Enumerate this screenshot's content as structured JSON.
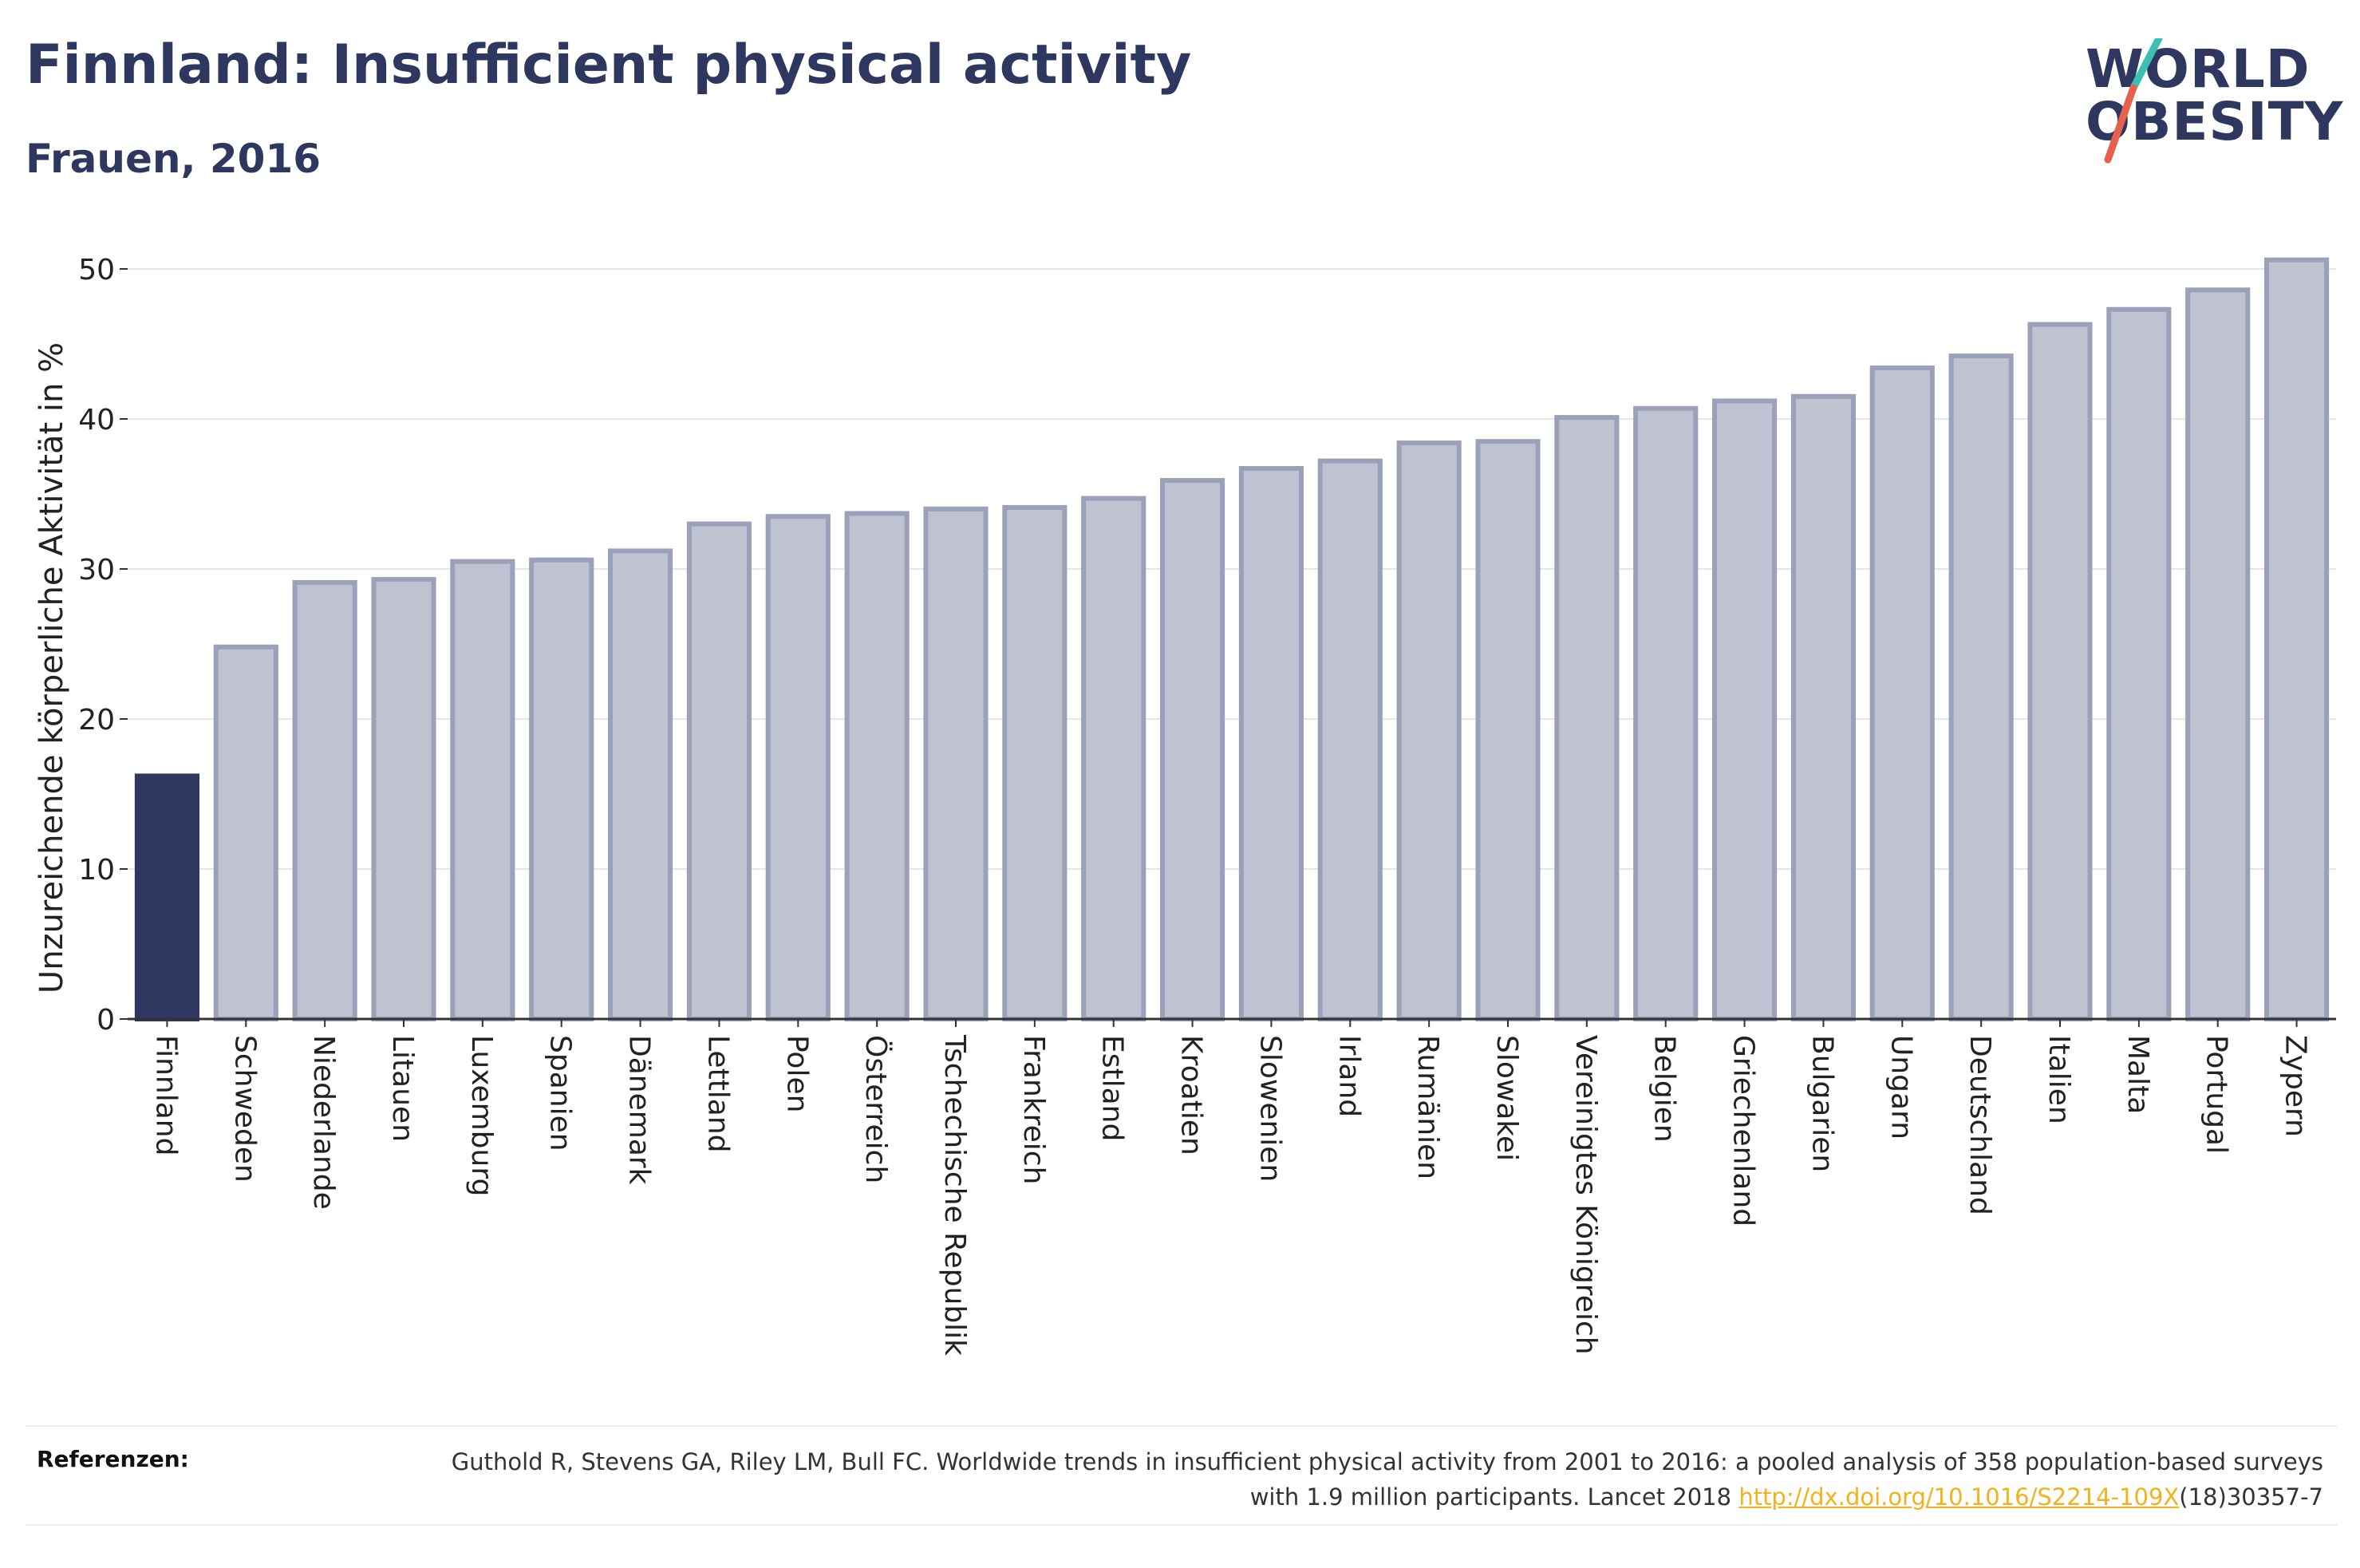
{
  "header": {
    "title": "Finnland: Insufficient physical activity",
    "subtitle": "Frauen, 2016"
  },
  "logo": {
    "line1": "WORLD",
    "line2": "OBESITY",
    "colors": {
      "text": "#2d3760",
      "slash_top": "#3cbfb4",
      "slash_bottom": "#e8604c"
    }
  },
  "chart_data": {
    "type": "bar",
    "title": "",
    "xlabel": "",
    "ylabel": "Unzureichende körperliche Aktivität in %",
    "ylim": [
      0,
      50
    ],
    "yticks": [
      0,
      10,
      20,
      30,
      40,
      50
    ],
    "grid": true,
    "highlight_category": "Finnland",
    "colors": {
      "highlight": "#2d3760",
      "bar_fill": "#bfc3d1",
      "bar_stroke": "#9aa1b8"
    },
    "categories": [
      "Finnland",
      "Schweden",
      "Niederlande",
      "Litauen",
      "Luxemburg",
      "Spanien",
      "Dänemark",
      "Lettland",
      "Polen",
      "Österreich",
      "Tschechische Republik",
      "Frankreich",
      "Estland",
      "Kroatien",
      "Slowenien",
      "Irland",
      "Rumänien",
      "Slowakei",
      "Vereinigtes Königreich",
      "Belgien",
      "Griechenland",
      "Bulgarien",
      "Ungarn",
      "Deutschland",
      "Italien",
      "Malta",
      "Portugal",
      "Zypern"
    ],
    "values": [
      16.2,
      24.8,
      29.1,
      29.3,
      30.5,
      30.6,
      31.2,
      33.0,
      33.5,
      33.7,
      34.0,
      34.1,
      34.7,
      35.9,
      36.7,
      37.2,
      38.4,
      38.5,
      40.1,
      40.7,
      41.2,
      41.5,
      43.4,
      44.2,
      46.3,
      47.3,
      48.6,
      50.6
    ]
  },
  "references": {
    "label": "Referenzen:",
    "text_before": "Guthold R, Stevens GA, Riley LM, Bull FC. Worldwide trends in insufficient physical activity from 2001 to 2016: a pooled analysis of 358 population-based surveys with 1.9 million participants. Lancet 2018 ",
    "link": "http://dx.doi.org/10.1016/S2214-109X",
    "text_after": "(18)30357-7"
  }
}
